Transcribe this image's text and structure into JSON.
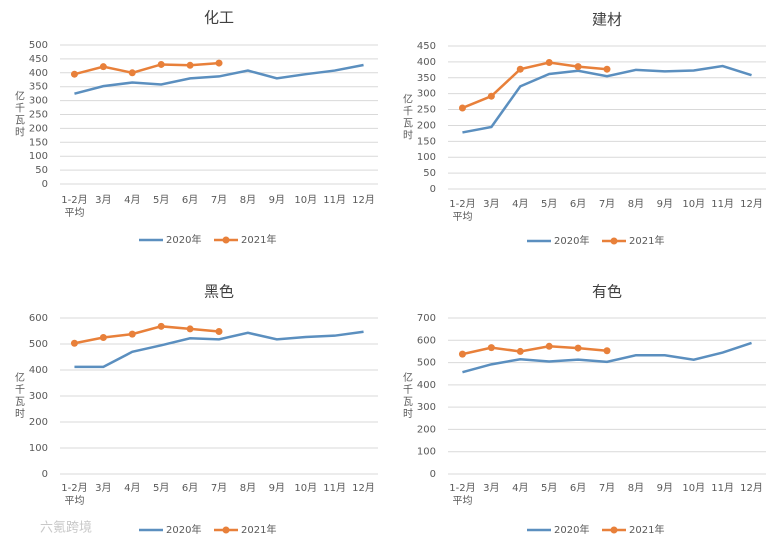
{
  "chart_data": [
    {
      "type": "line",
      "title": "化工",
      "y_label": "亿千瓦时",
      "categories": [
        "1-2月平均",
        "3月",
        "4月",
        "5月",
        "6月",
        "7月",
        "8月",
        "9月",
        "10月",
        "11月",
        "12月"
      ],
      "ylim": [
        0,
        500
      ],
      "yticks": [
        0,
        50,
        100,
        150,
        200,
        250,
        300,
        350,
        400,
        450,
        500
      ],
      "grid": true,
      "legend": "bottom",
      "series": [
        {
          "name": "2020年",
          "color": "#5b8fbf",
          "marker": false,
          "values": [
            325,
            352,
            365,
            358,
            380,
            387,
            408,
            380,
            395,
            408,
            428
          ]
        },
        {
          "name": "2021年",
          "color": "#e8803a",
          "marker": true,
          "values": [
            395,
            422,
            400,
            430,
            427,
            435,
            null,
            null,
            null,
            null,
            null
          ]
        }
      ]
    },
    {
      "type": "line",
      "title": "建材",
      "y_label": "亿千瓦时",
      "categories": [
        "1-2月平均",
        "3月",
        "4月",
        "5月",
        "6月",
        "7月",
        "8月",
        "9月",
        "10月",
        "11月",
        "12月"
      ],
      "ylim": [
        0,
        450
      ],
      "yticks": [
        0,
        50,
        100,
        150,
        200,
        250,
        300,
        350,
        400,
        450
      ],
      "grid": true,
      "legend": "bottom",
      "series": [
        {
          "name": "2020年",
          "color": "#5b8fbf",
          "marker": false,
          "values": [
            178,
            195,
            323,
            362,
            372,
            355,
            375,
            370,
            373,
            387,
            358
          ]
        },
        {
          "name": "2021年",
          "color": "#e8803a",
          "marker": true,
          "values": [
            255,
            292,
            377,
            398,
            385,
            377,
            null,
            null,
            null,
            null,
            null
          ]
        }
      ]
    },
    {
      "type": "line",
      "title": "黑色",
      "y_label": "亿千瓦时",
      "categories": [
        "1-2月平均",
        "3月",
        "4月",
        "5月",
        "6月",
        "7月",
        "8月",
        "9月",
        "10月",
        "11月",
        "12月"
      ],
      "ylim": [
        0,
        600
      ],
      "yticks": [
        0,
        100,
        200,
        300,
        400,
        500,
        600
      ],
      "grid": true,
      "legend": "bottom",
      "series": [
        {
          "name": "2020年",
          "color": "#5b8fbf",
          "marker": false,
          "values": [
            412,
            412,
            470,
            495,
            522,
            518,
            543,
            518,
            527,
            532,
            547
          ]
        },
        {
          "name": "2021年",
          "color": "#e8803a",
          "marker": true,
          "values": [
            503,
            525,
            538,
            568,
            558,
            548,
            null,
            null,
            null,
            null,
            null
          ]
        }
      ]
    },
    {
      "type": "line",
      "title": "有色",
      "y_label": "亿千瓦时",
      "categories": [
        "1-2月平均",
        "3月",
        "4月",
        "5月",
        "6月",
        "7月",
        "8月",
        "9月",
        "10月",
        "11月",
        "12月"
      ],
      "ylim": [
        0,
        700
      ],
      "yticks": [
        0,
        100,
        200,
        300,
        400,
        500,
        600,
        700
      ],
      "grid": true,
      "legend": "bottom",
      "series": [
        {
          "name": "2020年",
          "color": "#5b8fbf",
          "marker": false,
          "values": [
            457,
            492,
            515,
            505,
            513,
            503,
            533,
            533,
            513,
            545,
            588
          ]
        },
        {
          "name": "2021年",
          "color": "#e8803a",
          "marker": true,
          "values": [
            538,
            567,
            550,
            573,
            565,
            553,
            null,
            null,
            null,
            null,
            null
          ]
        }
      ]
    }
  ],
  "watermark": "六氪跨境"
}
